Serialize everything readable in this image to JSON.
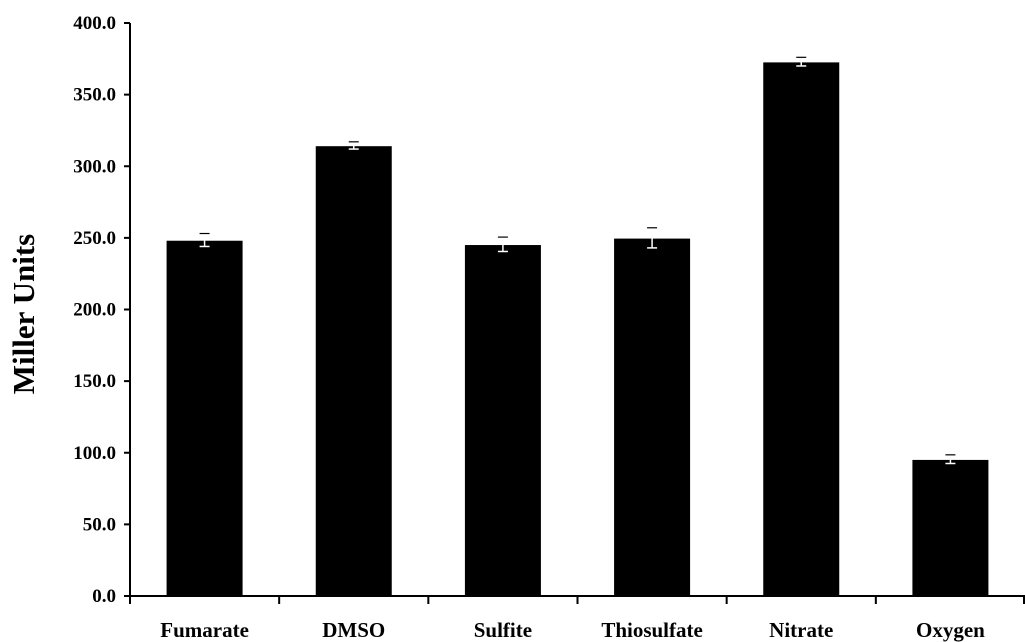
{
  "chart_data": {
    "type": "bar",
    "title": "",
    "xlabel": "",
    "ylabel": "Miller Units",
    "categories": [
      "Fumarate",
      "DMSO",
      "Sulfite",
      "Thiosulfate",
      "Nitrate",
      "Oxygen"
    ],
    "values": [
      248,
      314,
      245,
      249.5,
      372.5,
      95
    ],
    "errors": [
      4,
      2,
      4.5,
      6.5,
      2.5,
      2.5
    ],
    "ylim": [
      0,
      400
    ],
    "yticks": [
      0,
      50,
      100,
      150,
      200,
      250,
      300,
      350,
      400
    ],
    "ytick_labels": [
      "0.0",
      "50.0",
      "100.0",
      "150.0",
      "200.0",
      "250.0",
      "300.0",
      "350.0",
      "400.0"
    ],
    "grid": false,
    "legend": "none",
    "bar_color": "#000000"
  }
}
